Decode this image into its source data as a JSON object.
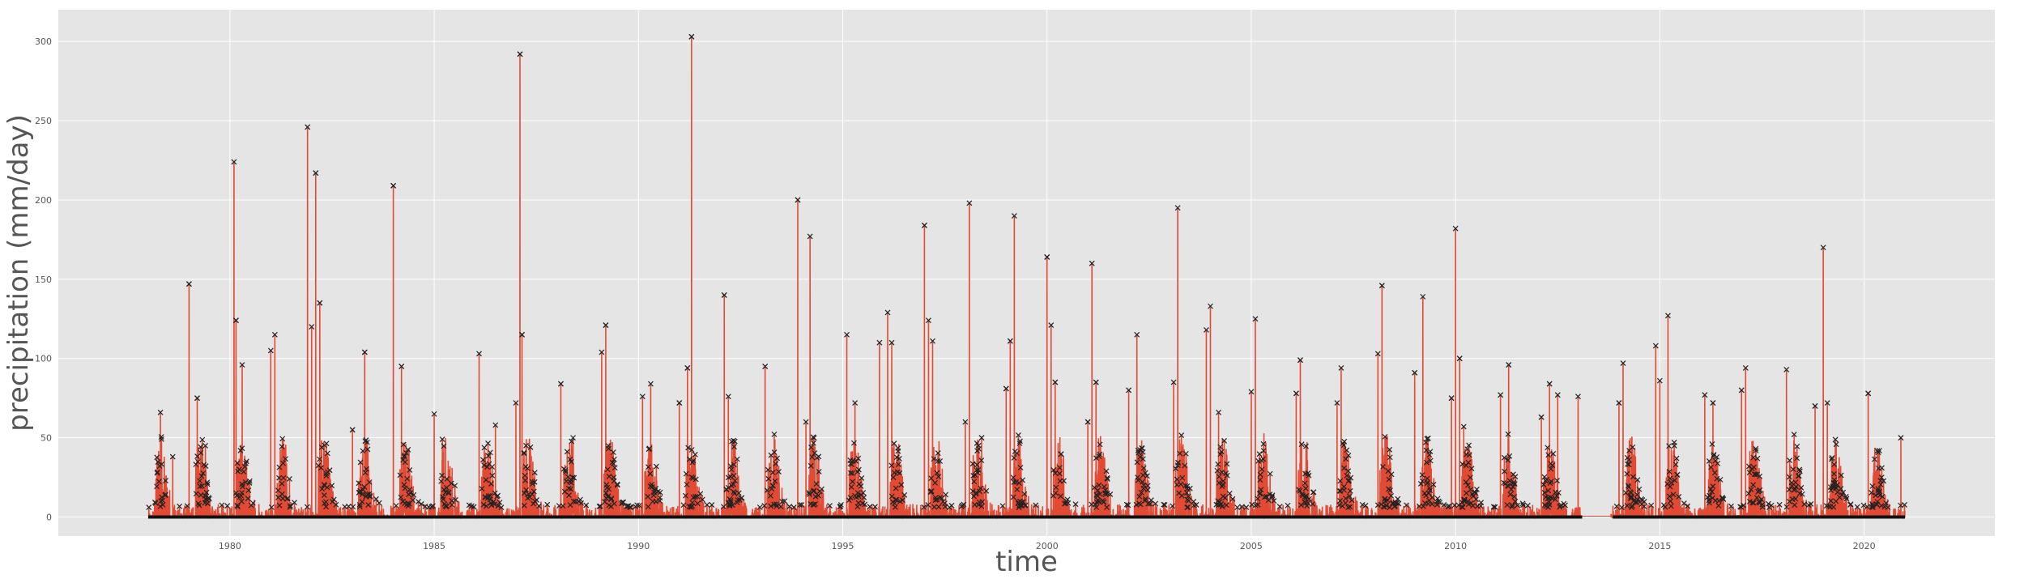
{
  "chart_data": {
    "type": "line",
    "title": "",
    "xlabel": "time",
    "ylabel": "precipitation (mm/day)",
    "xlim": [
      1975.8,
      2023.2
    ],
    "ylim": [
      -12,
      320
    ],
    "x_ticks": [
      1980,
      1985,
      1990,
      1995,
      2000,
      2005,
      2010,
      2015,
      2020
    ],
    "y_ticks": [
      0,
      50,
      100,
      150,
      200,
      250,
      300
    ],
    "grid": true,
    "legend": "none",
    "x_start": 1978.0,
    "x_end": 2021.0,
    "gap": [
      2013.1,
      2013.8
    ],
    "series": [
      {
        "style": "line-with-x-markers",
        "color": "#e24a33",
        "marker_color": "#222222",
        "peaks": [
          {
            "x": 1978.3,
            "y": 66
          },
          {
            "x": 1978.6,
            "y": 38
          },
          {
            "x": 1979.0,
            "y": 147
          },
          {
            "x": 1979.2,
            "y": 75
          },
          {
            "x": 1979.4,
            "y": 45
          },
          {
            "x": 1980.1,
            "y": 224
          },
          {
            "x": 1980.15,
            "y": 124
          },
          {
            "x": 1980.3,
            "y": 96
          },
          {
            "x": 1981.0,
            "y": 105
          },
          {
            "x": 1981.1,
            "y": 115
          },
          {
            "x": 1981.9,
            "y": 246
          },
          {
            "x": 1982.0,
            "y": 120
          },
          {
            "x": 1982.1,
            "y": 217
          },
          {
            "x": 1982.2,
            "y": 135
          },
          {
            "x": 1983.0,
            "y": 55
          },
          {
            "x": 1983.3,
            "y": 104
          },
          {
            "x": 1984.0,
            "y": 209
          },
          {
            "x": 1984.2,
            "y": 95
          },
          {
            "x": 1985.0,
            "y": 65
          },
          {
            "x": 1985.2,
            "y": 49
          },
          {
            "x": 1986.1,
            "y": 103
          },
          {
            "x": 1986.5,
            "y": 58
          },
          {
            "x": 1987.0,
            "y": 72
          },
          {
            "x": 1987.1,
            "y": 292
          },
          {
            "x": 1987.15,
            "y": 115
          },
          {
            "x": 1988.1,
            "y": 84
          },
          {
            "x": 1988.4,
            "y": 50
          },
          {
            "x": 1989.1,
            "y": 104
          },
          {
            "x": 1989.2,
            "y": 121
          },
          {
            "x": 1990.1,
            "y": 76
          },
          {
            "x": 1990.3,
            "y": 84
          },
          {
            "x": 1991.0,
            "y": 72
          },
          {
            "x": 1991.2,
            "y": 94
          },
          {
            "x": 1991.3,
            "y": 303
          },
          {
            "x": 1992.1,
            "y": 140
          },
          {
            "x": 1992.2,
            "y": 76
          },
          {
            "x": 1993.1,
            "y": 95
          },
          {
            "x": 1993.9,
            "y": 200
          },
          {
            "x": 1994.1,
            "y": 60
          },
          {
            "x": 1994.2,
            "y": 177
          },
          {
            "x": 1995.1,
            "y": 115
          },
          {
            "x": 1995.3,
            "y": 72
          },
          {
            "x": 1995.9,
            "y": 110
          },
          {
            "x": 1996.1,
            "y": 129
          },
          {
            "x": 1996.2,
            "y": 110
          },
          {
            "x": 1997.0,
            "y": 184
          },
          {
            "x": 1997.1,
            "y": 124
          },
          {
            "x": 1997.2,
            "y": 111
          },
          {
            "x": 1998.0,
            "y": 60
          },
          {
            "x": 1998.1,
            "y": 198
          },
          {
            "x": 1998.4,
            "y": 50
          },
          {
            "x": 1999.0,
            "y": 81
          },
          {
            "x": 1999.1,
            "y": 111
          },
          {
            "x": 1999.2,
            "y": 190
          },
          {
            "x": 2000.0,
            "y": 164
          },
          {
            "x": 2000.1,
            "y": 121
          },
          {
            "x": 2000.2,
            "y": 85
          },
          {
            "x": 2001.0,
            "y": 60
          },
          {
            "x": 2001.1,
            "y": 160
          },
          {
            "x": 2001.2,
            "y": 85
          },
          {
            "x": 2002.0,
            "y": 80
          },
          {
            "x": 2002.2,
            "y": 115
          },
          {
            "x": 2003.1,
            "y": 85
          },
          {
            "x": 2003.2,
            "y": 195
          },
          {
            "x": 2003.9,
            "y": 118
          },
          {
            "x": 2004.0,
            "y": 133
          },
          {
            "x": 2004.2,
            "y": 66
          },
          {
            "x": 2005.0,
            "y": 79
          },
          {
            "x": 2005.1,
            "y": 125
          },
          {
            "x": 2006.1,
            "y": 78
          },
          {
            "x": 2006.2,
            "y": 99
          },
          {
            "x": 2007.1,
            "y": 72
          },
          {
            "x": 2007.2,
            "y": 94
          },
          {
            "x": 2008.1,
            "y": 103
          },
          {
            "x": 2008.2,
            "y": 146
          },
          {
            "x": 2009.0,
            "y": 91
          },
          {
            "x": 2009.2,
            "y": 139
          },
          {
            "x": 2009.9,
            "y": 75
          },
          {
            "x": 2010.0,
            "y": 182
          },
          {
            "x": 2010.1,
            "y": 100
          },
          {
            "x": 2010.2,
            "y": 57
          },
          {
            "x": 2011.1,
            "y": 77
          },
          {
            "x": 2011.3,
            "y": 96
          },
          {
            "x": 2012.1,
            "y": 63
          },
          {
            "x": 2012.3,
            "y": 84
          },
          {
            "x": 2012.5,
            "y": 77
          },
          {
            "x": 2013.0,
            "y": 76
          },
          {
            "x": 2014.0,
            "y": 72
          },
          {
            "x": 2014.1,
            "y": 97
          },
          {
            "x": 2014.9,
            "y": 108
          },
          {
            "x": 2015.0,
            "y": 86
          },
          {
            "x": 2015.2,
            "y": 127
          },
          {
            "x": 2016.1,
            "y": 77
          },
          {
            "x": 2016.3,
            "y": 72
          },
          {
            "x": 2017.0,
            "y": 80
          },
          {
            "x": 2017.1,
            "y": 94
          },
          {
            "x": 2018.1,
            "y": 93
          },
          {
            "x": 2018.8,
            "y": 70
          },
          {
            "x": 2019.0,
            "y": 170
          },
          {
            "x": 2019.1,
            "y": 72
          },
          {
            "x": 2020.1,
            "y": 78
          },
          {
            "x": 2020.9,
            "y": 50
          }
        ]
      }
    ]
  }
}
